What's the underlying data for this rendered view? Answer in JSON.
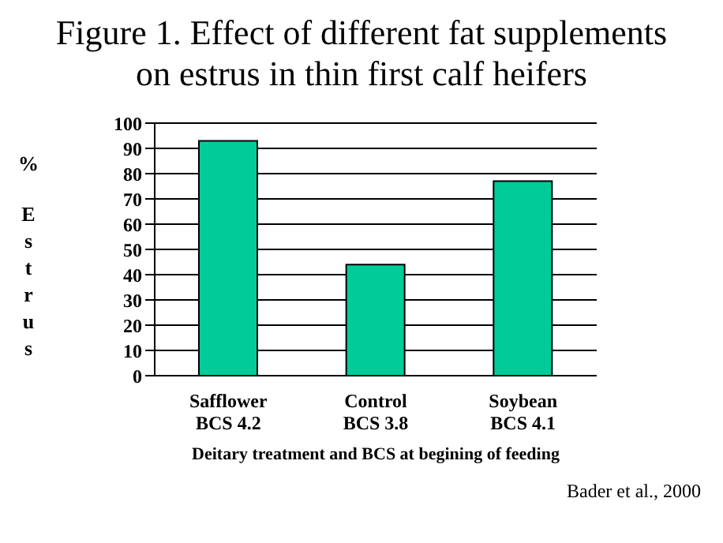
{
  "chart_data": {
    "type": "bar",
    "title": "Figure 1.  Effect of different fat supplements on estrus in thin first calf heifers",
    "xlabel": "Deitary treatment and BCS at begining of feeding",
    "ylabel": "% Estrus",
    "categories": [
      "Safflower\nBCS 4.2",
      "Control\nBCS 3.8",
      "Soybean\nBCS 4.1"
    ],
    "values": [
      93,
      44,
      77
    ],
    "color": "#00cc99",
    "ylim": [
      0,
      100
    ],
    "yticks": [
      0,
      10,
      20,
      30,
      40,
      50,
      60,
      70,
      80,
      90,
      100
    ],
    "grid": "y",
    "annotations": [
      "Bader et al., 2000"
    ]
  }
}
